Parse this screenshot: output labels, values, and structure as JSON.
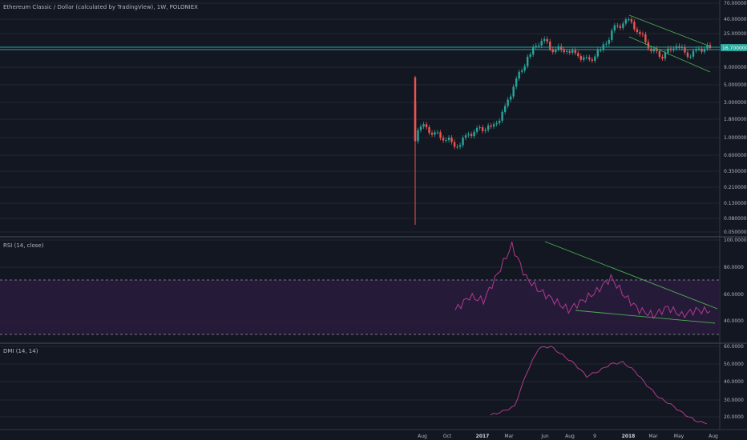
{
  "title": "Ethereum Classic / Dollar (calculated by TradingView), 1W, POLONIEX",
  "price_panel": {
    "y_ticks": [
      "70.00000000",
      "40.00000000",
      "25.00000000",
      "9.00000000",
      "5.00000000",
      "3.00000000",
      "1.80000000",
      "1.00000000",
      "0.60000000",
      "0.35000000",
      "0.21000000",
      "0.13000000",
      "0.08000000",
      "0.05000000"
    ],
    "current_price_label": "16.70000000",
    "colors": {
      "up": "#26a69a",
      "down": "#ef5350",
      "trendline": "#4caf50",
      "level": "#26a69a",
      "label_bg": "#26a69a"
    }
  },
  "rsi_panel": {
    "label": "RSI (14, close)",
    "y_ticks": [
      "100.0000",
      "80.0000",
      "60.0000",
      "40.0000"
    ],
    "band_color": "#2a1b3d",
    "line_color": "#b03a8c"
  },
  "dmi_panel": {
    "label": "DMI (14, 14)",
    "y_ticks": [
      "60.0000",
      "50.0000",
      "40.0000",
      "30.0000",
      "20.0000"
    ],
    "line_color": "#b03a8c"
  },
  "time_axis": {
    "labels": [
      "Aug",
      "Oct",
      "2017",
      "Mar",
      "Jun",
      "Aug",
      "9",
      "2018",
      "Mar",
      "May",
      "Aug"
    ]
  },
  "chart_data": [
    {
      "type": "candlestick",
      "title": "Ethereum Classic / Dollar (calculated by TradingView), 1W, POLONIEX",
      "scale": "log",
      "x": [
        "2016-07-24",
        "2016-08-07",
        "2016-09-04",
        "2016-10-02",
        "2016-11-06",
        "2016-12-04",
        "2017-01-01",
        "2017-02-05",
        "2017-03-05",
        "2017-04-02",
        "2017-05-07",
        "2017-06-04",
        "2017-07-02",
        "2017-08-06",
        "2017-09-03",
        "2017-10-01",
        "2017-11-05",
        "2017-12-03",
        "2018-01-07",
        "2018-02-04",
        "2018-03-04",
        "2018-04-01",
        "2018-05-06",
        "2018-06-03",
        "2018-07-01",
        "2018-07-29"
      ],
      "close": [
        0.9,
        1.5,
        1.2,
        1.0,
        0.8,
        1.1,
        1.3,
        1.4,
        2.5,
        6.0,
        14.0,
        22.0,
        16.0,
        16.0,
        13.0,
        11.0,
        17.0,
        30.0,
        38.0,
        25.0,
        16.0,
        13.0,
        19.0,
        13.0,
        16.0,
        16.7
      ],
      "current_price": 16.7
    },
    {
      "type": "line",
      "name": "RSI (14, close)",
      "x": [
        "2017-02-05",
        "2017-03-05",
        "2017-04-02",
        "2017-05-07",
        "2017-06-04",
        "2017-07-02",
        "2017-08-06",
        "2017-09-03",
        "2017-10-01",
        "2017-11-05",
        "2017-12-03",
        "2018-01-07",
        "2018-02-04",
        "2018-03-04",
        "2018-04-01",
        "2018-05-06",
        "2018-06-03",
        "2018-07-01",
        "2018-07-29"
      ],
      "y": [
        48,
        58,
        55,
        75,
        96,
        72,
        62,
        55,
        48,
        55,
        62,
        72,
        58,
        48,
        44,
        50,
        44,
        48,
        47
      ],
      "bands": [
        30,
        70
      ]
    },
    {
      "type": "line",
      "name": "DMI (14, 14)",
      "x": [
        "2017-02-05",
        "2017-03-05",
        "2017-04-02",
        "2017-05-07",
        "2017-06-04",
        "2017-07-02",
        "2017-08-06",
        "2017-09-03",
        "2017-10-01",
        "2017-11-05",
        "2017-12-03",
        "2018-01-07",
        "2018-02-04",
        "2018-03-04",
        "2018-04-01",
        "2018-05-06",
        "2018-06-03",
        "2018-07-01",
        "2018-07-29"
      ],
      "y": [
        21,
        23,
        26,
        45,
        59,
        60,
        55,
        50,
        43,
        46,
        50,
        51,
        46,
        38,
        31,
        27,
        22,
        18,
        16
      ]
    }
  ]
}
